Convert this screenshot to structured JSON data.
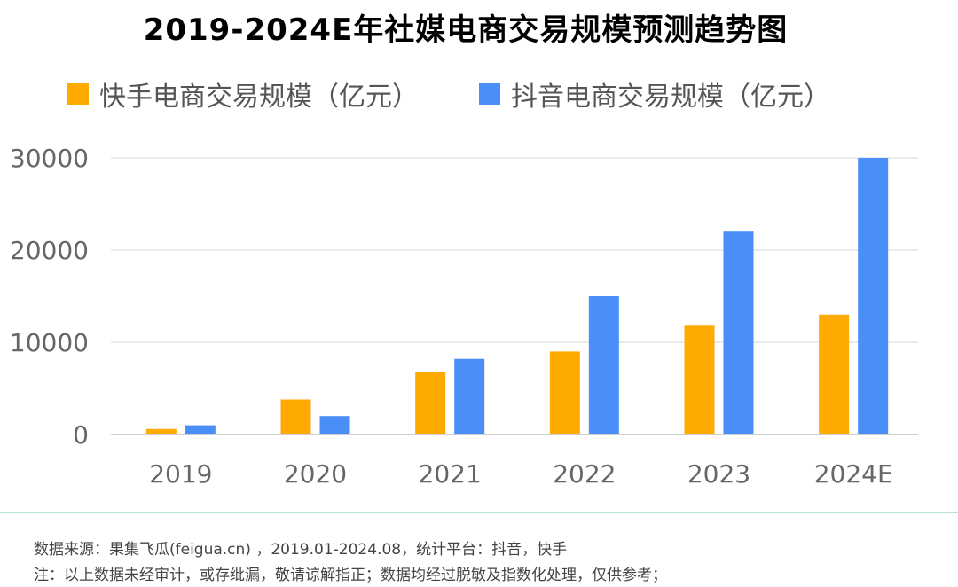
{
  "title": "2019-2024E年社媒电商交易规模预测趋势图",
  "chart_data": {
    "type": "bar",
    "categories": [
      "2019",
      "2020",
      "2021",
      "2022",
      "2023",
      "2024E"
    ],
    "series": [
      {
        "name": "快手电商交易规模（亿元）",
        "color": "#FFAA00",
        "values": [
          600,
          3800,
          6800,
          9000,
          11800,
          13000
        ]
      },
      {
        "name": "抖音电商交易规模（亿元）",
        "color": "#4A8EF7",
        "values": [
          1000,
          2000,
          8200,
          15000,
          22000,
          30000
        ]
      }
    ],
    "yticks": [
      "30000",
      "20000",
      "10000",
      "0"
    ],
    "ylim": [
      0,
      30000
    ],
    "grid": true,
    "legend_position": "top"
  },
  "footer": {
    "source": "数据来源：果集飞瓜(feigua.cn) ，2019.01-2024.08，统计平台：抖音，快手",
    "note": "注：以上数据未经审计，或存纰漏，敬请谅解指正；数据均经过脱敏及指数化处理，仅供参考；"
  }
}
